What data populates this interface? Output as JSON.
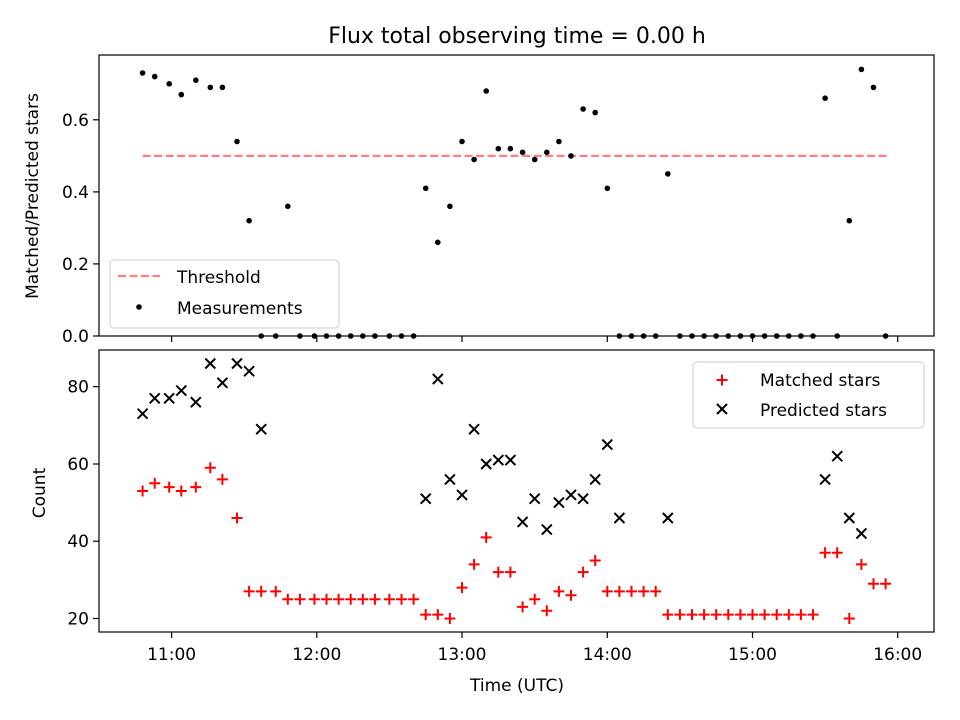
{
  "chart_data": [
    {
      "type": "scatter",
      "title": "Flux total observing time = 0.00 h",
      "xlabel": "",
      "ylabel": "Matched/Predicted stars",
      "xlim": [
        "10:30",
        "16:15"
      ],
      "ylim": [
        0,
        0.78
      ],
      "yticks": [
        0.0,
        0.2,
        0.4,
        0.6
      ],
      "ytick_labels": [
        "0.0",
        "0.2",
        "0.4",
        "0.6"
      ],
      "legend_position": "lower-left",
      "series": [
        {
          "name": "Threshold",
          "kind": "dashed-line",
          "color": "#ff7f7f",
          "x": [
            "10:48",
            "15:56"
          ],
          "y": [
            0.5,
            0.5
          ]
        },
        {
          "name": "Measurements",
          "kind": "points",
          "color": "#000000",
          "x": [
            "10:48",
            "10:53",
            "10:59",
            "11:04",
            "11:10",
            "11:16",
            "11:21",
            "11:27",
            "11:32",
            "11:37",
            "11:43",
            "11:48",
            "11:53",
            "11:59",
            "12:04",
            "12:09",
            "12:14",
            "12:19",
            "12:24",
            "12:30",
            "12:35",
            "12:40",
            "12:45",
            "12:50",
            "12:55",
            "13:00",
            "13:05",
            "13:10",
            "13:15",
            "13:20",
            "13:25",
            "13:30",
            "13:35",
            "13:40",
            "13:45",
            "13:50",
            "13:55",
            "14:00",
            "14:05",
            "14:10",
            "14:15",
            "14:20",
            "14:25",
            "14:30",
            "14:35",
            "14:40",
            "14:45",
            "14:50",
            "14:55",
            "15:00",
            "15:05",
            "15:10",
            "15:15",
            "15:20",
            "15:25",
            "15:30",
            "15:35",
            "15:40",
            "15:45",
            "15:50",
            "15:55"
          ],
          "y": [
            0.73,
            0.72,
            0.7,
            0.67,
            0.71,
            0.69,
            0.69,
            0.54,
            0.32,
            0.0,
            0.0,
            0.36,
            0.0,
            0.0,
            0.0,
            0.0,
            0.0,
            0.0,
            0.0,
            0.0,
            0.0,
            0.0,
            0.41,
            0.26,
            0.36,
            0.54,
            0.49,
            0.68,
            0.52,
            0.52,
            0.51,
            0.49,
            0.51,
            0.54,
            0.5,
            0.63,
            0.62,
            0.41,
            0.0,
            0.0,
            0.0,
            0.0,
            0.45,
            0.0,
            0.0,
            0.0,
            0.0,
            0.0,
            0.0,
            0.0,
            0.0,
            0.0,
            0.0,
            0.0,
            0.0,
            0.66,
            0.0,
            0.32,
            0.74,
            0.69,
            0.0
          ]
        }
      ]
    },
    {
      "type": "scatter",
      "title": "",
      "xlabel": "Time (UTC)",
      "ylabel": "Count",
      "xlim": [
        "10:30",
        "16:15"
      ],
      "xticks": [
        "11:00",
        "12:00",
        "13:00",
        "14:00",
        "15:00",
        "16:00"
      ],
      "ylim": [
        16.5,
        89.5
      ],
      "yticks": [
        20,
        40,
        60,
        80
      ],
      "legend_position": "upper-right",
      "series": [
        {
          "name": "Matched stars",
          "kind": "plus",
          "color": "#ff0000",
          "x": [
            "10:48",
            "10:53",
            "10:59",
            "11:04",
            "11:10",
            "11:16",
            "11:21",
            "11:27",
            "11:32",
            "11:37",
            "11:43",
            "11:48",
            "11:53",
            "11:59",
            "12:04",
            "12:09",
            "12:14",
            "12:19",
            "12:24",
            "12:30",
            "12:35",
            "12:40",
            "12:45",
            "12:50",
            "12:55",
            "13:00",
            "13:05",
            "13:10",
            "13:15",
            "13:20",
            "13:25",
            "13:30",
            "13:35",
            "13:40",
            "13:45",
            "13:50",
            "13:55",
            "14:00",
            "14:05",
            "14:10",
            "14:15",
            "14:20",
            "14:25",
            "14:30",
            "14:35",
            "14:40",
            "14:45",
            "14:50",
            "14:55",
            "15:00",
            "15:05",
            "15:10",
            "15:15",
            "15:20",
            "15:25",
            "15:30",
            "15:35",
            "15:40",
            "15:45",
            "15:50",
            "15:55"
          ],
          "y": [
            53,
            55,
            54,
            53,
            54,
            59,
            56,
            46,
            27,
            27,
            27,
            25,
            25,
            25,
            25,
            25,
            25,
            25,
            25,
            25,
            25,
            25,
            21,
            21,
            20,
            28,
            34,
            41,
            32,
            32,
            23,
            25,
            22,
            27,
            26,
            32,
            35,
            27,
            27,
            27,
            27,
            27,
            21,
            21,
            21,
            21,
            21,
            21,
            21,
            21,
            21,
            21,
            21,
            21,
            21,
            37,
            37,
            20,
            34,
            29,
            29
          ]
        },
        {
          "name": "Predicted stars",
          "kind": "cross",
          "color": "#000000",
          "x": [
            "10:48",
            "10:53",
            "10:59",
            "11:04",
            "11:10",
            "11:16",
            "11:21",
            "11:27",
            "11:32",
            "11:37",
            "12:45",
            "12:50",
            "12:55",
            "13:00",
            "13:05",
            "13:10",
            "13:15",
            "13:20",
            "13:25",
            "13:30",
            "13:35",
            "13:40",
            "13:45",
            "13:50",
            "13:55",
            "14:00",
            "14:05",
            "14:25",
            "15:30",
            "15:35",
            "15:40",
            "15:45"
          ],
          "y": [
            73,
            77,
            77,
            79,
            76,
            86,
            81,
            86,
            84,
            69,
            51,
            82,
            56,
            52,
            69,
            60,
            61,
            61,
            45,
            51,
            43,
            50,
            52,
            51,
            56,
            65,
            46,
            46,
            56,
            62,
            46,
            42
          ]
        }
      ]
    }
  ]
}
